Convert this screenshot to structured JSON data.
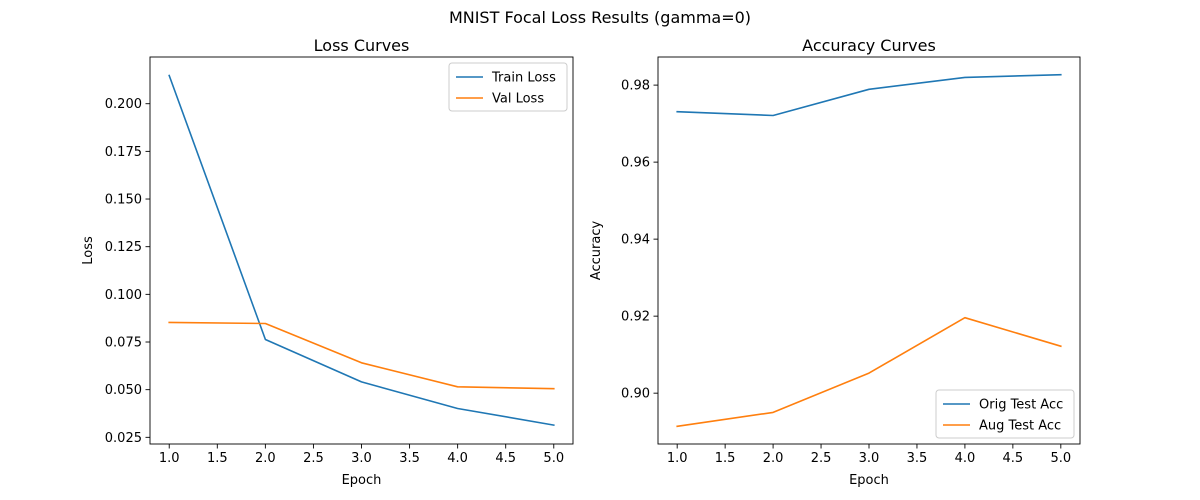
{
  "figure": {
    "suptitle": "MNIST Focal Loss Results (gamma=0)"
  },
  "chart_data": [
    {
      "type": "line",
      "title": "Loss Curves",
      "xlabel": "Epoch",
      "ylabel": "Loss",
      "xlim": [
        0.8,
        5.2
      ],
      "ylim": [
        0.0215,
        0.2245
      ],
      "xticks": [
        1.0,
        1.5,
        2.0,
        2.5,
        3.0,
        3.5,
        4.0,
        4.5,
        5.0
      ],
      "xtick_labels": [
        "1.0",
        "1.5",
        "2.0",
        "2.5",
        "3.0",
        "3.5",
        "4.0",
        "4.5",
        "5.0"
      ],
      "yticks": [
        0.025,
        0.05,
        0.075,
        0.1,
        0.125,
        0.15,
        0.175,
        0.2
      ],
      "ytick_labels": [
        "0.025",
        "0.050",
        "0.075",
        "0.100",
        "0.125",
        "0.150",
        "0.175",
        "0.200"
      ],
      "legend_position": "top-right",
      "grid": false,
      "series": [
        {
          "name": "Train Loss",
          "color": "#1f77b4",
          "x": [
            1,
            2,
            3,
            4,
            5
          ],
          "y": [
            0.2148,
            0.0763,
            0.0541,
            0.0401,
            0.0314
          ]
        },
        {
          "name": "Val Loss",
          "color": "#ff7f0e",
          "x": [
            1,
            2,
            3,
            4,
            5
          ],
          "y": [
            0.0853,
            0.0847,
            0.0641,
            0.0515,
            0.0505
          ]
        }
      ]
    },
    {
      "type": "line",
      "title": "Accuracy Curves",
      "xlabel": "Epoch",
      "ylabel": "Accuracy",
      "xlim": [
        0.8,
        5.2
      ],
      "ylim": [
        0.8868,
        0.9873
      ],
      "xticks": [
        1.0,
        1.5,
        2.0,
        2.5,
        3.0,
        3.5,
        4.0,
        4.5,
        5.0
      ],
      "xtick_labels": [
        "1.0",
        "1.5",
        "2.0",
        "2.5",
        "3.0",
        "3.5",
        "4.0",
        "4.5",
        "5.0"
      ],
      "yticks": [
        0.9,
        0.92,
        0.94,
        0.96,
        0.98
      ],
      "ytick_labels": [
        "0.90",
        "0.92",
        "0.94",
        "0.96",
        "0.98"
      ],
      "legend_position": "bottom-right",
      "grid": false,
      "series": [
        {
          "name": "Orig Test Acc",
          "color": "#1f77b4",
          "x": [
            1,
            2,
            3,
            4,
            5
          ],
          "y": [
            0.9731,
            0.9721,
            0.9789,
            0.982,
            0.9827
          ]
        },
        {
          "name": "Aug Test Acc",
          "color": "#ff7f0e",
          "x": [
            1,
            2,
            3,
            4,
            5
          ],
          "y": [
            0.8914,
            0.895,
            0.9052,
            0.9196,
            0.9122
          ]
        }
      ]
    }
  ]
}
